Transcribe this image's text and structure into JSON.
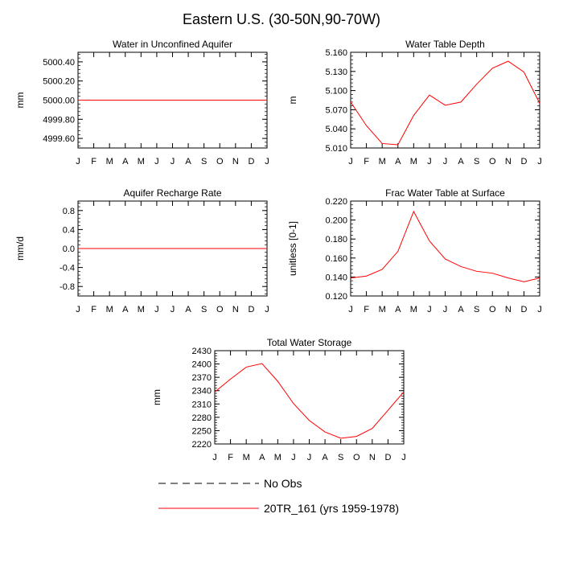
{
  "figure": {
    "title": "Eastern U.S. (30-50N,90-70W)",
    "legend": {
      "entries": [
        {
          "label": "No Obs",
          "color": "#000000",
          "style": "dashed"
        },
        {
          "label": "20TR_161 (yrs 1959-1978)",
          "color": "#ff0000",
          "style": "solid"
        }
      ]
    }
  },
  "months": [
    "J",
    "F",
    "M",
    "A",
    "M",
    "J",
    "J",
    "A",
    "S",
    "O",
    "N",
    "D",
    "J"
  ],
  "chart_data": [
    {
      "type": "line",
      "title": "Water in Unconfined Aquifer",
      "ylabel": "mm",
      "xlabel": "",
      "ylim": [
        4999.5,
        5000.5
      ],
      "yticks": [
        4999.6,
        4999.8,
        5000.0,
        5000.2,
        5000.4
      ],
      "ytick_labels": [
        "4999.60",
        "4999.80",
        "5000.00",
        "5000.20",
        "5000.40"
      ],
      "series": [
        {
          "name": "20TR_161 (yrs 1959-1978)",
          "color": "#ff0000",
          "values": [
            5000,
            5000,
            5000,
            5000,
            5000,
            5000,
            5000,
            5000,
            5000,
            5000,
            5000,
            5000,
            5000
          ]
        }
      ]
    },
    {
      "type": "line",
      "title": "Water Table Depth",
      "ylabel": "m",
      "xlabel": "",
      "ylim": [
        5.01,
        5.16
      ],
      "yticks": [
        5.01,
        5.04,
        5.07,
        5.1,
        5.13,
        5.16
      ],
      "ytick_labels": [
        "5.010",
        "5.040",
        "5.070",
        "5.100",
        "5.130",
        "5.160"
      ],
      "series": [
        {
          "name": "20TR_161 (yrs 1959-1978)",
          "color": "#ff0000",
          "values": [
            5.082,
            5.045,
            5.017,
            5.015,
            5.061,
            5.093,
            5.077,
            5.082,
            5.11,
            5.135,
            5.146,
            5.129,
            5.08
          ]
        }
      ]
    },
    {
      "type": "line",
      "title": "Aquifer Recharge Rate",
      "ylabel": "mm/d",
      "xlabel": "",
      "ylim": [
        -1.0,
        1.0
      ],
      "yticks": [
        -0.8,
        -0.4,
        0.0,
        0.4,
        0.8
      ],
      "ytick_labels": [
        "-0.8",
        "-0.4",
        "0.0",
        "0.4",
        "0.8"
      ],
      "series": [
        {
          "name": "20TR_161 (yrs 1959-1978)",
          "color": "#ff0000",
          "values": [
            0,
            0,
            0,
            0,
            0,
            0,
            0,
            0,
            0,
            0,
            0,
            0,
            0
          ]
        }
      ]
    },
    {
      "type": "line",
      "title": "Frac Water Table at Surface",
      "ylabel": "unitless [0-1]",
      "xlabel": "",
      "ylim": [
        0.12,
        0.22
      ],
      "yticks": [
        0.12,
        0.14,
        0.16,
        0.18,
        0.2,
        0.22
      ],
      "ytick_labels": [
        "0.120",
        "0.140",
        "0.160",
        "0.180",
        "0.200",
        "0.220"
      ],
      "series": [
        {
          "name": "20TR_161 (yrs 1959-1978)",
          "color": "#ff0000",
          "values": [
            0.139,
            0.141,
            0.148,
            0.167,
            0.209,
            0.178,
            0.159,
            0.151,
            0.146,
            0.144,
            0.139,
            0.135,
            0.139
          ]
        }
      ]
    },
    {
      "type": "line",
      "title": "Total Water Storage",
      "ylabel": "mm",
      "xlabel": "",
      "ylim": [
        2220,
        2430
      ],
      "yticks": [
        2220,
        2250,
        2280,
        2310,
        2340,
        2370,
        2400,
        2430
      ],
      "ytick_labels": [
        "2220",
        "2250",
        "2280",
        "2310",
        "2340",
        "2370",
        "2400",
        "2430"
      ],
      "series": [
        {
          "name": "20TR_161 (yrs 1959-1978)",
          "color": "#ff0000",
          "values": [
            2337,
            2366,
            2393,
            2401,
            2361,
            2311,
            2273,
            2247,
            2233,
            2237,
            2255,
            2296,
            2337
          ]
        }
      ]
    }
  ]
}
